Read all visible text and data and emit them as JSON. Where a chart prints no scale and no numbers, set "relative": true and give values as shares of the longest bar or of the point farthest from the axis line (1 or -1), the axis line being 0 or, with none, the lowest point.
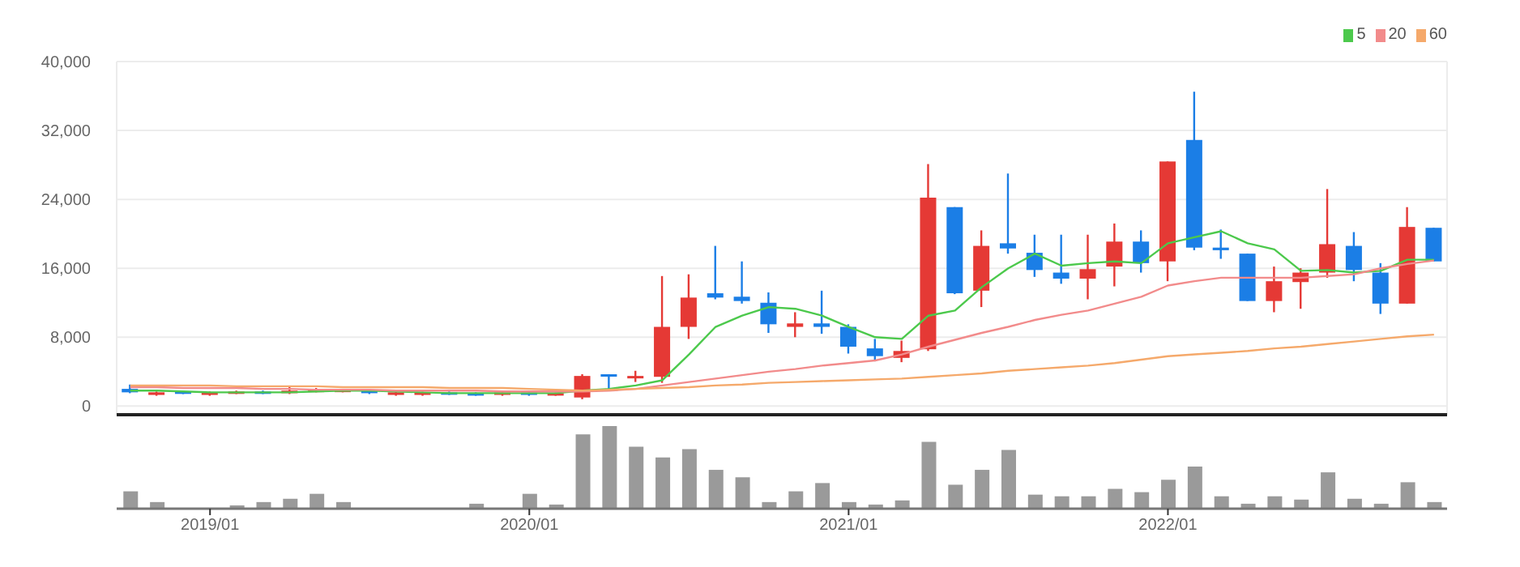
{
  "chart_data": [
    {
      "type": "candlestick",
      "x": [
        "2018-10",
        "2018-11",
        "2018-12",
        "2019-01",
        "2019-02",
        "2019-03",
        "2019-04",
        "2019-05",
        "2019-06",
        "2019-07",
        "2019-08",
        "2019-09",
        "2019-10",
        "2019-11",
        "2019-12",
        "2020-01",
        "2020-02",
        "2020-03",
        "2020-04",
        "2020-05",
        "2020-06",
        "2020-07",
        "2020-08",
        "2020-09",
        "2020-10",
        "2020-11",
        "2020-12",
        "2021-01",
        "2021-02",
        "2021-03",
        "2021-04",
        "2021-05",
        "2021-06",
        "2021-07",
        "2021-08",
        "2021-09",
        "2021-10",
        "2021-11",
        "2021-12",
        "2022-01",
        "2022-02",
        "2022-03",
        "2022-04",
        "2022-05",
        "2022-06",
        "2022-07",
        "2022-08",
        "2022-09",
        "2022-10",
        "2022-11"
      ],
      "ohlc": [
        [
          2000,
          2500,
          1500,
          1600
        ],
        [
          1300,
          1700,
          1200,
          1600
        ],
        [
          1700,
          1800,
          1400,
          1500
        ],
        [
          1300,
          1700,
          1200,
          1600
        ],
        [
          1500,
          1800,
          1400,
          1700
        ],
        [
          1700,
          1800,
          1400,
          1500
        ],
        [
          1500,
          2300,
          1400,
          1800
        ],
        [
          1700,
          2100,
          1600,
          1900
        ],
        [
          1700,
          2000,
          1600,
          1900
        ],
        [
          1800,
          1900,
          1400,
          1500
        ],
        [
          1300,
          1700,
          1200,
          1600
        ],
        [
          1300,
          1700,
          1200,
          1600
        ],
        [
          1600,
          1700,
          1300,
          1400
        ],
        [
          1500,
          1600,
          1200,
          1300
        ],
        [
          1300,
          1700,
          1200,
          1600
        ],
        [
          1600,
          1700,
          1200,
          1300
        ],
        [
          1300,
          1600,
          1200,
          1500
        ],
        [
          1000,
          3700,
          800,
          3500
        ],
        [
          3700,
          3700,
          2000,
          3500
        ],
        [
          3300,
          4100,
          2800,
          3500
        ],
        [
          3400,
          15100,
          2700,
          9200
        ],
        [
          9200,
          15300,
          7800,
          12600
        ],
        [
          13100,
          18600,
          12400,
          12600
        ],
        [
          12700,
          16800,
          11900,
          12200
        ],
        [
          12000,
          13200,
          8500,
          9500
        ],
        [
          9200,
          10900,
          8000,
          9600
        ],
        [
          9600,
          13400,
          8400,
          9200
        ],
        [
          9200,
          9500,
          6100,
          6900
        ],
        [
          6700,
          7800,
          5200,
          5800
        ],
        [
          5600,
          7600,
          5100,
          6400
        ],
        [
          6600,
          28100,
          6400,
          24200
        ],
        [
          23100,
          23100,
          13000,
          13100
        ],
        [
          13400,
          20400,
          11500,
          18600
        ],
        [
          18900,
          27000,
          17700,
          18300
        ],
        [
          17800,
          19900,
          15000,
          15800
        ],
        [
          15500,
          19900,
          14200,
          14800
        ],
        [
          14800,
          19900,
          12400,
          15900
        ],
        [
          16200,
          21200,
          13900,
          19100
        ],
        [
          19100,
          20400,
          15500,
          16600
        ],
        [
          16800,
          28400,
          14500,
          28400
        ],
        [
          30900,
          36500,
          18100,
          18400
        ],
        [
          18400,
          20500,
          17100,
          18100
        ],
        [
          17700,
          17700,
          12200,
          12200
        ],
        [
          12200,
          16200,
          10900,
          14500
        ],
        [
          14400,
          16000,
          11300,
          15500
        ],
        [
          15500,
          25200,
          14900,
          18800
        ],
        [
          18600,
          20200,
          14500,
          15800
        ],
        [
          15500,
          16600,
          10700,
          11900
        ],
        [
          11900,
          23100,
          11900,
          20800
        ],
        [
          20700,
          20700,
          16800,
          16800
        ]
      ],
      "colors": [
        "#1b7ee6",
        "#e53935",
        "#1b7ee6",
        "#e53935",
        "#e53935",
        "#1b7ee6",
        "#e53935",
        "#e53935",
        "#e53935",
        "#1b7ee6",
        "#e53935",
        "#e53935",
        "#1b7ee6",
        "#1b7ee6",
        "#e53935",
        "#1b7ee6",
        "#e53935",
        "#e53935",
        "#1b7ee6",
        "#e53935",
        "#e53935",
        "#e53935",
        "#1b7ee6",
        "#1b7ee6",
        "#1b7ee6",
        "#e53935",
        "#1b7ee6",
        "#1b7ee6",
        "#1b7ee6",
        "#e53935",
        "#e53935",
        "#1b7ee6",
        "#e53935",
        "#1b7ee6",
        "#1b7ee6",
        "#1b7ee6",
        "#e53935",
        "#e53935",
        "#1b7ee6",
        "#e53935",
        "#1b7ee6",
        "#1b7ee6",
        "#1b7ee6",
        "#e53935",
        "#e53935",
        "#e53935",
        "#1b7ee6",
        "#1b7ee6",
        "#e53935",
        "#1b7ee6"
      ],
      "series": [
        {
          "name": "5",
          "type": "line",
          "color": "#4cc94c",
          "values": [
            1800,
            1800,
            1700,
            1600,
            1600,
            1600,
            1600,
            1700,
            1800,
            1800,
            1700,
            1600,
            1500,
            1500,
            1500,
            1500,
            1500,
            1800,
            2000,
            2400,
            3000,
            6000,
            9200,
            10500,
            11500,
            11300,
            10500,
            9200,
            8000,
            7800,
            10500,
            11100,
            13800,
            16000,
            17700,
            16300,
            16600,
            16800,
            16600,
            18900,
            19600,
            20300,
            18900,
            18200,
            15700,
            15800,
            15500,
            15700,
            17000,
            17000
          ]
        },
        {
          "name": "20",
          "type": "line",
          "color": "#f28b8b",
          "values": [
            2200,
            2200,
            2100,
            2100,
            2100,
            2000,
            2000,
            1900,
            1900,
            1900,
            1800,
            1800,
            1800,
            1800,
            1700,
            1700,
            1700,
            1700,
            1800,
            2000,
            2400,
            2800,
            3200,
            3600,
            4000,
            4300,
            4700,
            5000,
            5300,
            6000,
            6900,
            7700,
            8500,
            9200,
            10000,
            10600,
            11100,
            11900,
            12700,
            14000,
            14500,
            14900,
            14900,
            14900,
            14900,
            15100,
            15300,
            16000,
            16500,
            16900
          ]
        },
        {
          "name": "60",
          "type": "line",
          "color": "#f5a96b",
          "values": [
            2400,
            2400,
            2400,
            2400,
            2300,
            2300,
            2300,
            2300,
            2200,
            2200,
            2200,
            2200,
            2100,
            2100,
            2100,
            2000,
            1900,
            1800,
            1900,
            2000,
            2100,
            2200,
            2400,
            2500,
            2700,
            2800,
            2900,
            3000,
            3100,
            3200,
            3400,
            3600,
            3800,
            4100,
            4300,
            4500,
            4700,
            5000,
            5400,
            5800,
            6000,
            6200,
            6400,
            6700,
            6900,
            7200,
            7500,
            7800,
            8100,
            8300
          ]
        }
      ],
      "xlim": [
        "2018-09-16",
        "2022-11-16"
      ],
      "xticks": [
        {
          "value": "2019-01",
          "label": null
        },
        {
          "value": "2020-01",
          "label": null
        },
        {
          "value": "2021-01",
          "label": null
        },
        {
          "value": "2022-01",
          "label": null
        }
      ],
      "ylim": [
        -1000,
        40000
      ],
      "yticks": [
        {
          "value": 0,
          "label": "0"
        },
        {
          "value": 8000,
          "label": "8,000"
        },
        {
          "value": 16000,
          "label": "16,000"
        },
        {
          "value": 24000,
          "label": "24,000"
        },
        {
          "value": 32000,
          "label": "32,000"
        },
        {
          "value": 40000,
          "label": "40,000"
        }
      ],
      "grid": true,
      "legend": "top right",
      "marker": "none",
      "line_style": "solid",
      "tick_labels": "y"
    },
    {
      "type": "bar",
      "relative": true,
      "color": "#9a9a9a",
      "x": [
        "2018-10",
        "2018-11",
        "2018-12",
        "2019-01",
        "2019-02",
        "2019-03",
        "2019-04",
        "2019-05",
        "2019-06",
        "2019-07",
        "2019-08",
        "2019-09",
        "2019-10",
        "2019-11",
        "2019-12",
        "2020-01",
        "2020-02",
        "2020-03",
        "2020-04",
        "2020-05",
        "2020-06",
        "2020-07",
        "2020-08",
        "2020-09",
        "2020-10",
        "2020-11",
        "2020-12",
        "2021-01",
        "2021-02",
        "2021-03",
        "2021-04",
        "2021-05",
        "2021-06",
        "2021-07",
        "2021-08",
        "2021-09",
        "2021-10",
        "2021-11",
        "2021-12",
        "2022-01",
        "2022-02",
        "2022-03",
        "2022-04",
        "2022-05",
        "2022-06",
        "2022-07",
        "2022-08",
        "2022-09",
        "2022-10",
        "2022-11"
      ],
      "values": [
        0.21,
        0.08,
        0.01,
        0.01,
        0.04,
        0.08,
        0.12,
        0.18,
        0.08,
        0.01,
        0.01,
        0.01,
        0,
        0.06,
        0,
        0.18,
        0.05,
        0.9,
        1,
        0.75,
        0.62,
        0.72,
        0.47,
        0.38,
        0.08,
        0.21,
        0.31,
        0.08,
        0.05,
        0.1,
        0.81,
        0.29,
        0.47,
        0.71,
        0.17,
        0.15,
        0.15,
        0.24,
        0.2,
        0.35,
        0.51,
        0.15,
        0.06,
        0.15,
        0.11,
        0.44,
        0.12,
        0.06,
        0.32,
        0.08
      ],
      "xlim": [
        "2018-09-16",
        "2022-11-16"
      ],
      "xticks": [
        {
          "value": "2019-01",
          "label": "2019/01"
        },
        {
          "value": "2020-01",
          "label": "2020/01"
        },
        {
          "value": "2021-01",
          "label": "2021/01"
        },
        {
          "value": "2022-01",
          "label": "2022/01"
        }
      ],
      "tick_labels": "x"
    }
  ]
}
